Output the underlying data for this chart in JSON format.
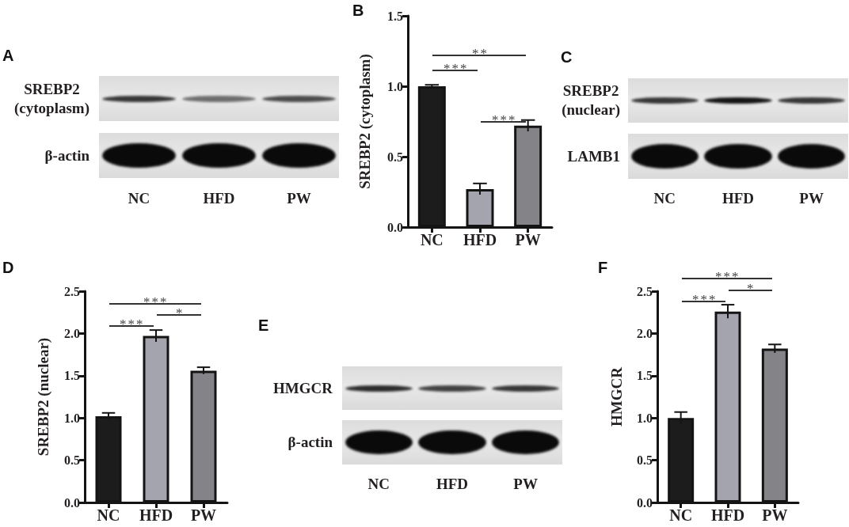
{
  "chart_data": [
    {
      "type": "other",
      "title": "A",
      "categories": [
        "NC",
        "HFD",
        "PW"
      ],
      "annotations": [
        "SREBP2 (cytoplasm)",
        "β-actin"
      ]
    },
    {
      "type": "bar",
      "title": "B",
      "categories": [
        "NC",
        "HFD",
        "PW"
      ],
      "values": [
        1.0,
        0.27,
        0.72
      ],
      "errors": [
        0.01,
        0.04,
        0.04
      ],
      "colors": [
        "#1c1c1c",
        "#a4a4ae",
        "#848387"
      ],
      "ylabel": "SREBP2 (cytoplasm)",
      "ylim": [
        0,
        1.5
      ],
      "yticks": [
        {
          "value": 0,
          "label": "0.0"
        },
        0.5,
        {
          "value": 1,
          "label": "1.0"
        },
        1.5
      ],
      "annotations": [
        "**",
        "***",
        "***"
      ]
    },
    {
      "type": "other",
      "title": "C",
      "categories": [
        "NC",
        "HFD",
        "PW"
      ],
      "annotations": [
        "SREBP2 (nuclear)",
        "LAMB1"
      ]
    },
    {
      "type": "bar",
      "title": "D",
      "categories": [
        "NC",
        "HFD",
        "PW"
      ],
      "values": [
        1.02,
        1.97,
        1.56
      ],
      "errors": [
        0.04,
        0.07,
        0.04
      ],
      "colors": [
        "#1c1c1c",
        "#a4a4ae",
        "#848387"
      ],
      "ylabel": "SREBP2 (nuclear)",
      "ylim": [
        0,
        2.5
      ],
      "yticks": [
        {
          "value": 0,
          "label": "0.0"
        },
        0.5,
        {
          "value": 1,
          "label": "1.0"
        },
        1.5,
        {
          "value": 2,
          "label": "2.0"
        },
        2.5
      ],
      "annotations": [
        "***",
        "*",
        "***"
      ]
    },
    {
      "type": "other",
      "title": "E",
      "categories": [
        "NC",
        "HFD",
        "PW"
      ],
      "annotations": [
        "HMGCR",
        "β-actin"
      ]
    },
    {
      "type": "bar",
      "title": "F",
      "categories": [
        "NC",
        "HFD",
        "PW"
      ],
      "values": [
        1.0,
        2.26,
        1.82
      ],
      "errors": [
        0.07,
        0.08,
        0.05
      ],
      "colors": [
        "#1c1c1c",
        "#a4a4ae",
        "#848387"
      ],
      "ylabel": "HMGCR",
      "ylim": [
        0,
        2.5
      ],
      "yticks": [
        {
          "value": 0,
          "label": "0.0"
        },
        0.5,
        {
          "value": 1,
          "label": "1.0"
        },
        1.5,
        {
          "value": 2,
          "label": "2.0"
        },
        2.5
      ],
      "annotations": [
        "***",
        "*",
        "***"
      ]
    }
  ]
}
